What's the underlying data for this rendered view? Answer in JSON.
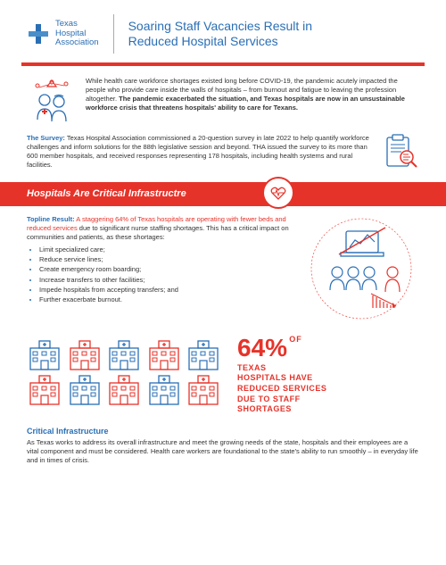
{
  "logo": {
    "line1": "Texas",
    "line2": "Hospital",
    "line3": "Association"
  },
  "title": "Soaring Staff Vacancies Result in\nReduced Hospital Services",
  "colors": {
    "primary_blue": "#2a6fb5",
    "accent_red": "#e6332a",
    "text": "#333333"
  },
  "intro": {
    "text_normal": "While health care workforce shortages existed long before COVID-19, the pandemic acutely impacted the people who provide care inside the walls of hospitals – from burnout and fatigue to leaving the profession altogether. ",
    "text_bold": "The pandemic exacerbated the situation, and Texas hospitals are now in an unsustainable workforce crisis that threatens hospitals' ability to care for Texans."
  },
  "survey": {
    "label": "The Survey:",
    "text": " Texas Hospital Association commissioned a 20-question survey in late 2022 to help quantify workforce challenges and inform solutions for the 88th legislative session and beyond. THA issued the survey to its more than 600 member hospitals, and received responses representing 178 hospitals, including health systems and rural facilities."
  },
  "section_title": "Hospitals Are Critical Infrastructre",
  "topline": {
    "label": "Topline Result:",
    "red_text": " A staggering 64% of Texas hospitals are operating with fewer beds and reduced services",
    "rest": " due to significant nurse staffing shortages. This has a critical impact on communities and patients, as these shortages:",
    "bullets": [
      "Limit specialized care;",
      "Reduce service lines;",
      "Create emergency room boarding;",
      "Increase transfers to other facilities;",
      "Impede hospitals from accepting transfers; and",
      "Further exacerbate burnout."
    ]
  },
  "stat": {
    "percent": "64%",
    "of": "OF",
    "line1": "TEXAS",
    "line2": "HOSPITALS HAVE",
    "line3": "REDUCED SERVICES",
    "line4": "DUE TO STAFF",
    "line5": "SHORTAGES"
  },
  "critical": {
    "heading": "Critical Infrastructure",
    "text": "As Texas works to address its overall infrastructure and meet the growing needs of the state, hospitals and their employees are a vital component and must be considered. Health care workers are foundational to the state's ability to run smoothly – in everyday life and in times of crisis."
  },
  "buildings": {
    "count": 10,
    "colors_alt": [
      "#2a6fb5",
      "#e6332a"
    ]
  }
}
